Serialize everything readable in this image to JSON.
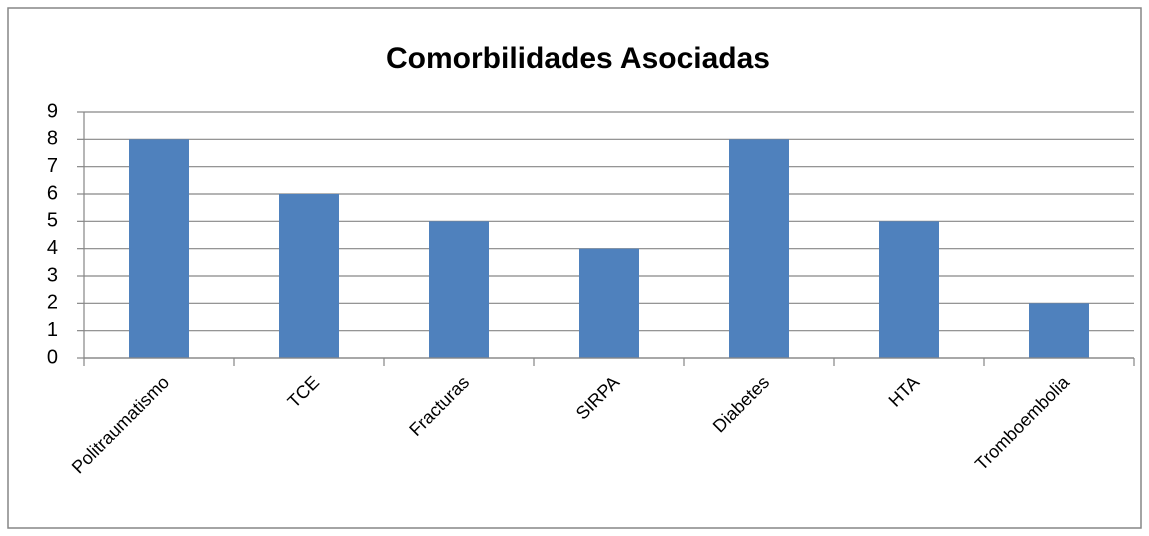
{
  "chart_data": {
    "type": "bar",
    "title": "Comorbilidades Asociadas",
    "categories": [
      "Politraumatismo",
      "TCE",
      "Fracturas",
      "SIRPA",
      "Diabetes",
      "HTA",
      "Tromboembolia"
    ],
    "values": [
      8,
      6,
      5,
      4,
      8,
      5,
      2
    ],
    "color": "#4f81bd",
    "ylim": [
      0,
      9
    ],
    "yticks": [
      0,
      1,
      2,
      3,
      4,
      5,
      6,
      7,
      8,
      9
    ],
    "grid": true
  }
}
